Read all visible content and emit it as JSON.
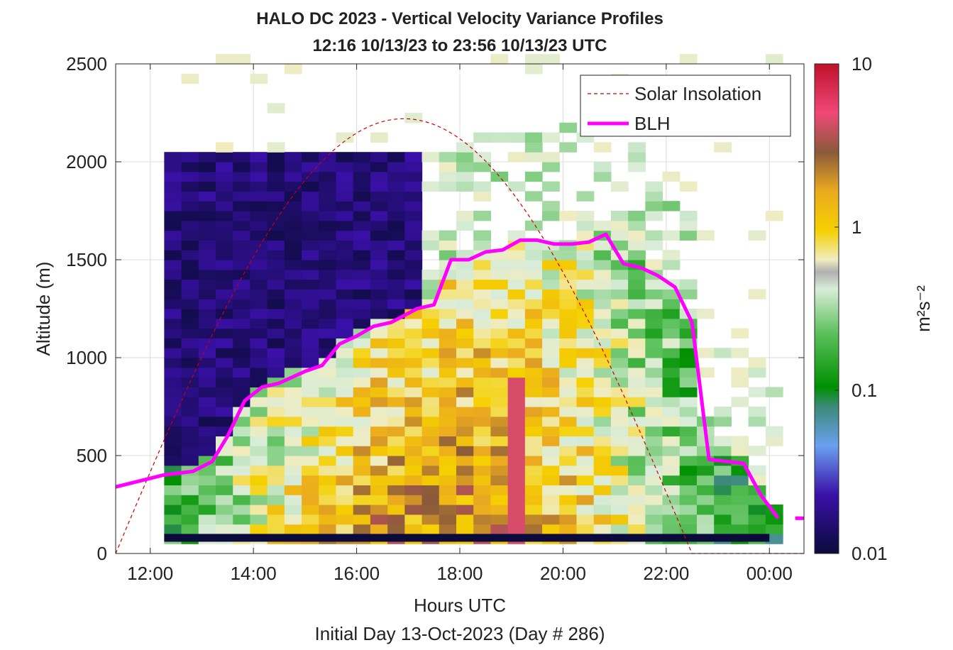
{
  "chart_data": {
    "type": "heatmap",
    "title": "HALO DC 2023 - Vertical Velocity Variance Profiles",
    "subtitle": "12:16 10/13/23 to 23:56 10/13/23  UTC",
    "xlabel": "Hours UTC",
    "xlabel2": "Initial Day 13-Oct-2023 (Day # 286)",
    "ylabel": "Altitude (m)",
    "xlim": [
      11.33,
      24.67
    ],
    "ylim": [
      0,
      2500
    ],
    "x_ticks": [
      12,
      14,
      16,
      18,
      20,
      22,
      24
    ],
    "x_tick_labels": [
      "12:00",
      "14:00",
      "16:00",
      "18:00",
      "20:00",
      "22:00",
      "00:00"
    ],
    "y_ticks": [
      0,
      500,
      1000,
      1500,
      2000,
      2500
    ],
    "y_tick_labels": [
      "0",
      "500",
      "1000",
      "1500",
      "2000",
      "2500"
    ],
    "grid": true,
    "colorbar": {
      "label": "m²s⁻²",
      "scale": "log",
      "range": [
        0.01,
        10
      ],
      "tick_labels": [
        "0.01",
        "0.1",
        "1",
        "10"
      ]
    },
    "legend": {
      "position": "top-right",
      "entries": [
        {
          "label": "Solar Insolation",
          "color": "#cc0000",
          "style": "dashed"
        },
        {
          "label": "BLH",
          "color": "#ff00ff",
          "style": "solid"
        }
      ]
    },
    "series": [
      {
        "name": "BLH",
        "color": "#ff00ff",
        "x": [
          11.33,
          12.25,
          12.83,
          13.2,
          13.5,
          13.83,
          14.17,
          14.5,
          15.0,
          15.33,
          15.67,
          16.0,
          16.33,
          16.67,
          17.17,
          17.5,
          17.83,
          18.17,
          18.5,
          18.83,
          19.17,
          19.5,
          19.83,
          20.17,
          20.5,
          20.83,
          21.17,
          21.5,
          21.83,
          22.17,
          22.5,
          22.83,
          23.17,
          23.5,
          23.83,
          24.17
        ],
        "y": [
          340,
          400,
          420,
          470,
          600,
          780,
          850,
          870,
          930,
          960,
          1070,
          1110,
          1160,
          1180,
          1250,
          1270,
          1500,
          1500,
          1540,
          1550,
          1600,
          1600,
          1580,
          1580,
          1590,
          1630,
          1480,
          1460,
          1420,
          1360,
          1180,
          480,
          470,
          460,
          300,
          180
        ]
      },
      {
        "name": "Solar Insolation",
        "color": "#cc0000",
        "sunrise": 11.33,
        "sunset": 22.5,
        "peak_time": 16.9,
        "peak_altitude_equiv": 2220
      }
    ]
  }
}
